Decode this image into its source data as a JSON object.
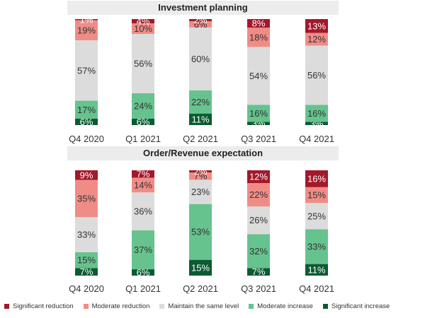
{
  "chart_data": [
    {
      "type": "bar",
      "stacked": true,
      "title": "Investment planning",
      "categories": [
        "Q4 2020",
        "Q1 2021",
        "Q2 2021",
        "Q3 2021",
        "Q4 2021"
      ],
      "series": [
        {
          "name": "Significant increase",
          "values": [
            6,
            6,
            11,
            3,
            3
          ]
        },
        {
          "name": "Moderate increase",
          "values": [
            17,
            24,
            22,
            16,
            16
          ]
        },
        {
          "name": "Maintain the same level",
          "values": [
            57,
            56,
            60,
            54,
            56
          ]
        },
        {
          "name": "Moderate reduction",
          "values": [
            19,
            10,
            6,
            18,
            12
          ]
        },
        {
          "name": "Significant reduction",
          "values": [
            1,
            4,
            2,
            8,
            13
          ]
        }
      ],
      "ylim": [
        0,
        100
      ]
    },
    {
      "type": "bar",
      "stacked": true,
      "title": "Order/Revenue expectation",
      "categories": [
        "Q4 2020",
        "Q1 2021",
        "Q2 2021",
        "Q3 2021",
        "Q4 2021"
      ],
      "series": [
        {
          "name": "Significant increase",
          "values": [
            7,
            6,
            15,
            7,
            11
          ]
        },
        {
          "name": "Moderate increase",
          "values": [
            15,
            37,
            53,
            32,
            33
          ]
        },
        {
          "name": "Maintain the same level",
          "values": [
            33,
            36,
            23,
            26,
            25
          ]
        },
        {
          "name": "Moderate reduction",
          "values": [
            35,
            14,
            7,
            22,
            15
          ]
        },
        {
          "name": "Significant reduction",
          "values": [
            9,
            7,
            2,
            12,
            16
          ]
        }
      ],
      "ylim": [
        0,
        100
      ]
    }
  ],
  "legend": [
    {
      "label": "Significant reduction",
      "color": "#a3182a"
    },
    {
      "label": "Moderate reduction",
      "color": "#f08c86"
    },
    {
      "label": "Maintain the same level",
      "color": "#dcdcdc"
    },
    {
      "label": "Moderate increase",
      "color": "#66c38e"
    },
    {
      "label": "Significant increase",
      "color": "#0c5a31"
    }
  ],
  "colors": {
    "Significant increase": "#0c5a31",
    "Moderate increase": "#66c38e",
    "Maintain the same level": "#dcdcdc",
    "Moderate reduction": "#f08c86",
    "Significant reduction": "#a3182a"
  },
  "label_colors": {
    "Significant increase": "#ffffff",
    "Moderate increase": "#333333",
    "Maintain the same level": "#333333",
    "Moderate reduction": "#333333",
    "Significant reduction": "#ffffff"
  }
}
